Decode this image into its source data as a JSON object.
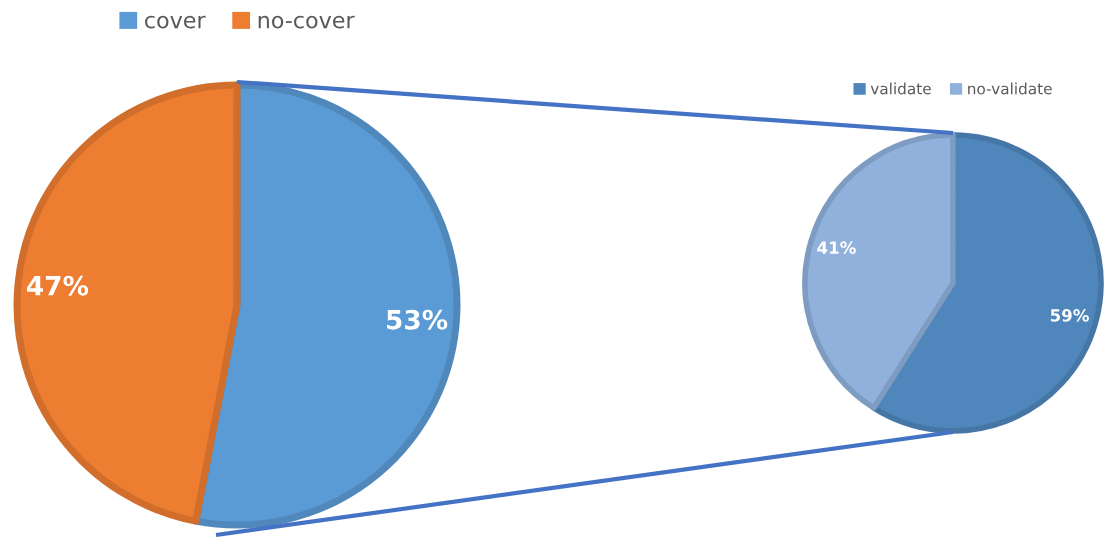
{
  "chart_data": [
    {
      "type": "pie",
      "categories": [
        "cover",
        "no-cover"
      ],
      "values": [
        53,
        47
      ],
      "colors": [
        "#5b9bd5",
        "#ed7d31"
      ],
      "value_labels": [
        "53%",
        "47%"
      ],
      "legend": "top"
    },
    {
      "type": "pie",
      "categories": [
        "validate",
        "no-validate"
      ],
      "values": [
        59,
        41
      ],
      "colors": [
        "#4f86bb",
        "#8fb1db"
      ],
      "value_labels": [
        "59%",
        "41%"
      ],
      "legend": "top"
    }
  ]
}
